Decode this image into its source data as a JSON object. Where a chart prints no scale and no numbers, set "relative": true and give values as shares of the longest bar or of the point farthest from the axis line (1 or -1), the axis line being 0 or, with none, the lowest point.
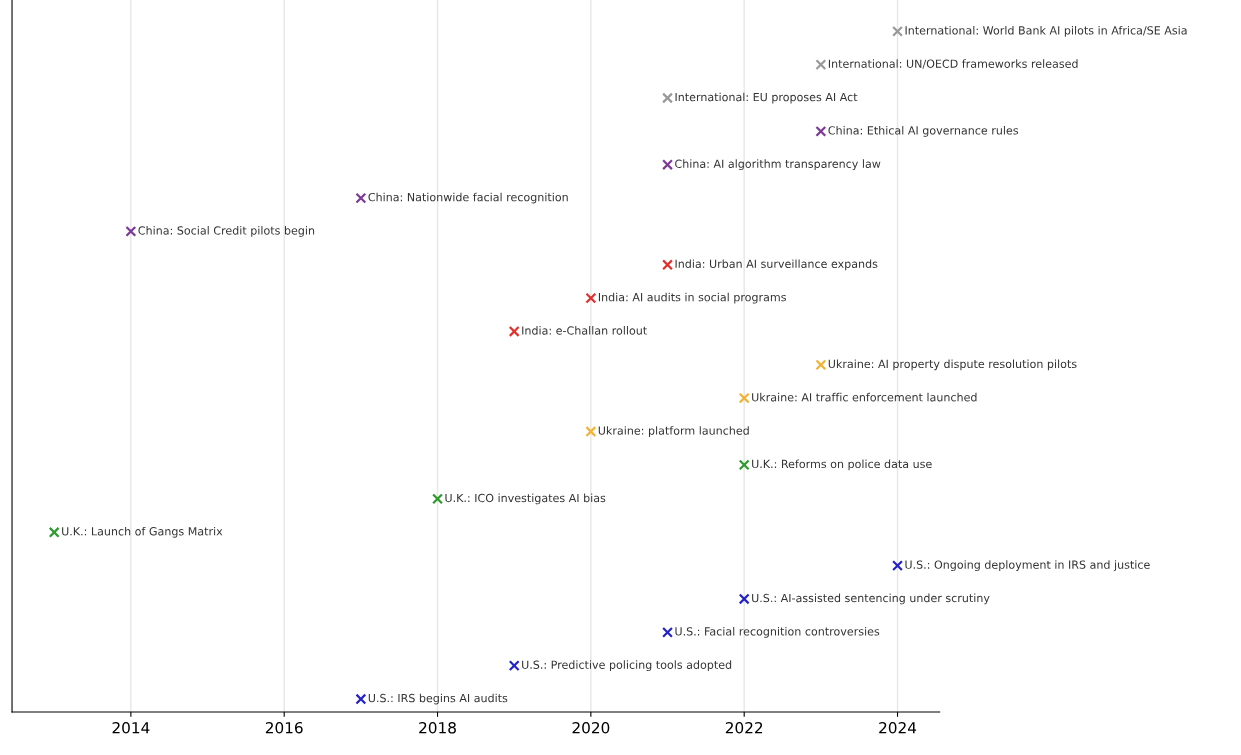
{
  "chart_data": {
    "type": "scatter",
    "relative": true,
    "marker": "cross",
    "grid": "x",
    "tick_labels": "x",
    "xlim": [
      2012.45,
      2024.55
    ],
    "xticks": [
      2014,
      2016,
      2018,
      2020,
      2022,
      2024
    ],
    "series": [
      {
        "color": "#2323c8",
        "x": [
          2017,
          2019,
          2021,
          2022,
          2024
        ],
        "values": [
          0.019,
          0.068,
          0.117,
          0.166,
          0.215
        ]
      },
      {
        "color": "#2e9a2e",
        "x": [
          2013,
          2018,
          2022
        ],
        "values": [
          0.264,
          0.313,
          0.363
        ]
      },
      {
        "color": "#f2b233",
        "x": [
          2020,
          2022,
          2023
        ],
        "values": [
          0.412,
          0.461,
          0.51
        ]
      },
      {
        "color": "#e0302e",
        "x": [
          2019,
          2020,
          2021
        ],
        "values": [
          0.559,
          0.608,
          0.657
        ]
      },
      {
        "color": "#7d3a98",
        "x": [
          2014,
          2017,
          2021,
          2023
        ],
        "values": [
          0.706,
          0.755,
          0.804,
          0.853
        ]
      },
      {
        "color": "#999999",
        "x": [
          2021,
          2023,
          2024
        ],
        "values": [
          0.902,
          0.951,
          1.0
        ]
      }
    ],
    "annotations": [
      {
        "text": "U.S.: IRS begins AI audits",
        "x": 2017,
        "y": 0.019
      },
      {
        "text": "U.S.: Predictive policing tools adopted",
        "x": 2019,
        "y": 0.068
      },
      {
        "text": "U.S.: Facial recognition controversies",
        "x": 2021,
        "y": 0.117
      },
      {
        "text": "U.S.: AI-assisted sentencing under scrutiny",
        "x": 2022,
        "y": 0.166
      },
      {
        "text": "U.S.: Ongoing deployment in IRS and justice",
        "x": 2024,
        "y": 0.215
      },
      {
        "text": "U.K.: Launch of Gangs Matrix",
        "x": 2013,
        "y": 0.264
      },
      {
        "text": "U.K.: ICO investigates AI bias",
        "x": 2018,
        "y": 0.313
      },
      {
        "text": "U.K.: Reforms on police data use",
        "x": 2022,
        "y": 0.363
      },
      {
        "text": "Ukraine: platform launched",
        "x": 2020,
        "y": 0.412
      },
      {
        "text": "Ukraine: AI traffic enforcement launched",
        "x": 2022,
        "y": 0.461
      },
      {
        "text": "Ukraine: AI property dispute resolution pilots",
        "x": 2023,
        "y": 0.51
      },
      {
        "text": "India: e-Challan rollout",
        "x": 2019,
        "y": 0.559
      },
      {
        "text": "India: AI audits in social programs",
        "x": 2020,
        "y": 0.608
      },
      {
        "text": "India: Urban AI surveillance expands",
        "x": 2021,
        "y": 0.657
      },
      {
        "text": "China: Social Credit pilots begin",
        "x": 2014,
        "y": 0.706
      },
      {
        "text": "China: Nationwide facial recognition",
        "x": 2017,
        "y": 0.755
      },
      {
        "text": "China: AI algorithm transparency law",
        "x": 2021,
        "y": 0.804
      },
      {
        "text": "China: Ethical AI governance rules",
        "x": 2023,
        "y": 0.853
      },
      {
        "text": "International: EU proposes AI Act",
        "x": 2021,
        "y": 0.902
      },
      {
        "text": "International: UN/OECD frameworks released",
        "x": 2023,
        "y": 0.951
      },
      {
        "text": "International: World Bank AI pilots in Africa/SE Asia",
        "x": 2024,
        "y": 1.0
      }
    ]
  }
}
